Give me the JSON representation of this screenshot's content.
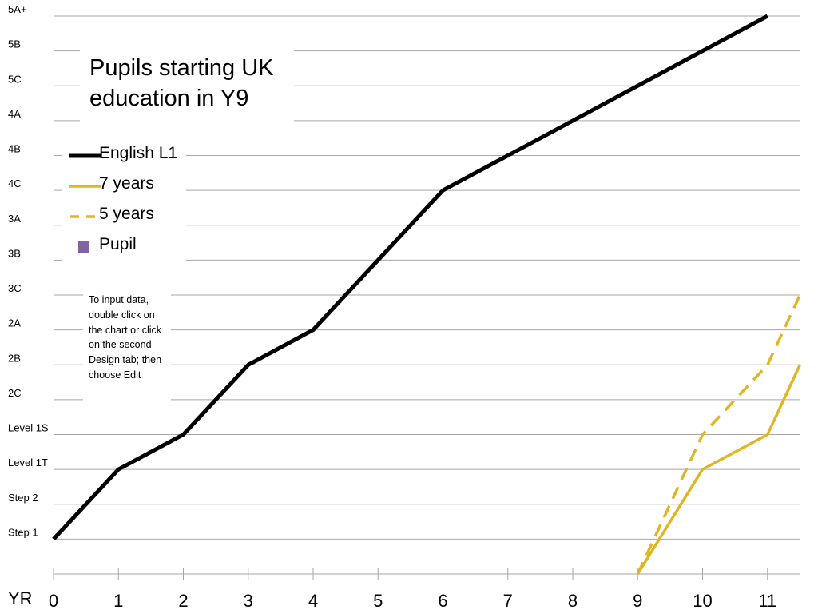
{
  "chart_data": {
    "type": "line",
    "title": "Pupils starting UK education in Y9",
    "x_axis_label": "YR",
    "x_ticks": [
      "0",
      "1",
      "2",
      "3",
      "4",
      "5",
      "6",
      "7",
      "8",
      "9",
      "10",
      "11"
    ],
    "xlim": [
      0,
      11.5
    ],
    "y_levels": [
      "Step 1",
      "Step 2",
      "Level 1T",
      "Level 1S",
      "2C",
      "2B",
      "2A",
      "3C",
      "3B",
      "3A",
      "4C",
      "4B",
      "4A",
      "5C",
      "5B",
      "5A+"
    ],
    "grid": true,
    "legend_placement": "top-left",
    "series": [
      {
        "name": "English L1",
        "color": "#000000",
        "style": "solid",
        "x": [
          0,
          1,
          2,
          3,
          4,
          6,
          8,
          11
        ],
        "y": [
          "Step 1",
          "Level 1T",
          "Level 1S",
          "2B",
          "2A",
          "4C",
          "4A",
          "5A+"
        ]
      },
      {
        "name": "7 years",
        "color": "#E1B623",
        "style": "solid",
        "x": [
          9,
          10,
          11,
          11.5
        ],
        "y": [
          "",
          "Level 1T",
          "Level 1S",
          "2B"
        ]
      },
      {
        "name": "5 years",
        "color": "#E1B623",
        "style": "dashed",
        "x": [
          9,
          10,
          11,
          11.5
        ],
        "y": [
          "",
          "Level 1S",
          "2B",
          "3C"
        ]
      }
    ],
    "legend": [
      {
        "label": "English L1",
        "marker": "line",
        "color": "#000000",
        "style": "solid"
      },
      {
        "label": "7 years",
        "marker": "line",
        "color": "#E1B623",
        "style": "solid"
      },
      {
        "label": "5 years",
        "marker": "line",
        "color": "#E1B623",
        "style": "dashed"
      },
      {
        "label": "Pupil",
        "marker": "square",
        "color": "#8064A2"
      }
    ],
    "annotation": "To input data, double click on the chart or click on the second Design tab; then choose Edit"
  }
}
